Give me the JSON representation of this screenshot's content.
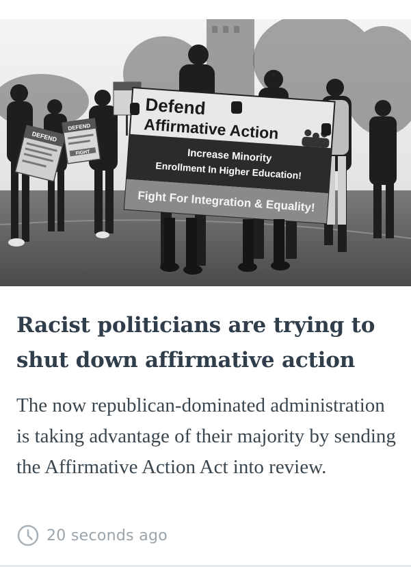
{
  "article": {
    "image": {
      "banner_line1": "Defend",
      "banner_line2": "Affirmative Action",
      "banner_line3": "Increase Minority",
      "banner_line4": "Enrollment In Higher Education!",
      "banner_line5": "Fight For Integration & Equality!",
      "sign_small_1": "DEFEND",
      "sign_small_2": "DEFEND",
      "sign_small_3": "FIGHT"
    },
    "headline": "Racist politicians are trying to shut down affirmative action",
    "summary": "The now republican-dominated administration is taking advantage of their majority by sending the Affirmative Action Act into review.",
    "timestamp": "20 seconds ago",
    "clock_icon": "clock-icon",
    "colors": {
      "headline": "#2f3e4a",
      "body": "#3a464f",
      "meta": "#9aa4ac"
    }
  }
}
